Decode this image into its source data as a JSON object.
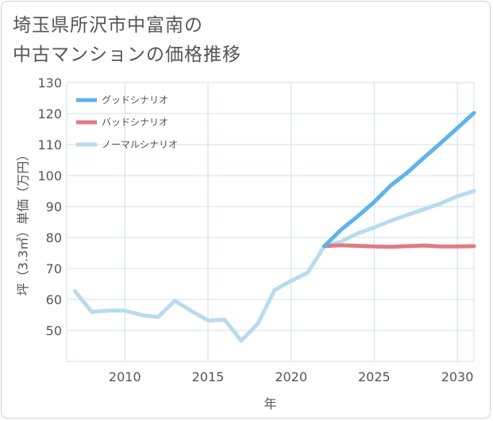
{
  "title_line1": "埼玉県所沢市中富南の",
  "title_line2": "中古マンションの価格推移",
  "chart_data": {
    "type": "line",
    "xlabel": "年",
    "ylabel": "坪（3.3㎡）単価（万円）",
    "xlim": [
      2006.5,
      2031
    ],
    "ylim": [
      40,
      130
    ],
    "y_ticks": [
      50,
      60,
      70,
      80,
      90,
      100,
      110,
      120,
      130
    ],
    "x_ticks": [
      2010,
      2015,
      2020,
      2025,
      2030
    ],
    "grid": true,
    "legend_position": "top-left",
    "series": [
      {
        "name": "グッドシナリオ",
        "color": "#5eb3ec",
        "x": [
          2022,
          2023,
          2024,
          2025,
          2026,
          2027,
          2028,
          2029,
          2030,
          2031
        ],
        "y": [
          77.2,
          82.5,
          86.8,
          91.5,
          96.8,
          101.0,
          105.8,
          110.5,
          115.3,
          120.2
        ]
      },
      {
        "name": "バッドシナリオ",
        "color": "#e07b85",
        "x": [
          2022,
          2023,
          2024,
          2025,
          2026,
          2027,
          2028,
          2029,
          2030,
          2031
        ],
        "y": [
          77.2,
          77.5,
          77.3,
          77.1,
          77.0,
          77.2,
          77.4,
          77.1,
          77.1,
          77.2
        ]
      },
      {
        "name": "ノーマルシナリオ",
        "color": "#b8dcee",
        "x": [
          2007,
          2008,
          2009,
          2010,
          2011,
          2012,
          2013,
          2014,
          2015,
          2016,
          2017,
          2018,
          2019,
          2020,
          2021,
          2022,
          2023,
          2024,
          2025,
          2026,
          2027,
          2028,
          2029,
          2030,
          2031
        ],
        "y": [
          62.7,
          56.0,
          56.4,
          56.4,
          55.0,
          54.3,
          59.6,
          56.3,
          53.2,
          53.5,
          46.7,
          52.2,
          63.0,
          66.0,
          68.7,
          77.2,
          78.7,
          81.3,
          83.2,
          85.4,
          87.3,
          89.1,
          91.0,
          93.3,
          95.0
        ]
      }
    ]
  }
}
